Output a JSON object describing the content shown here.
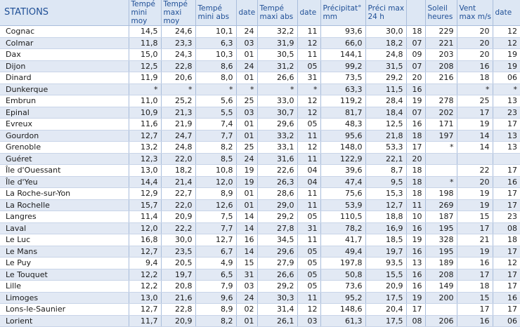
{
  "table": {
    "headers": [
      "STATIONS",
      "Tempé mini moy",
      "Tempé maxi moy",
      "Tempé mini abs",
      "date",
      "Tempé maxi abs",
      "date",
      "Précipitat° mm",
      "Préci max 24 h",
      "",
      "Soleil heures",
      "Vent max m/s",
      "date"
    ],
    "rows": [
      [
        "Cognac",
        "14,5",
        "24,6",
        "10,1",
        "24",
        "32,2",
        "11",
        "93,6",
        "30,0",
        "18",
        "229",
        "20",
        "12"
      ],
      [
        "Colmar",
        "11,8",
        "23,3",
        "6,3",
        "03",
        "31,9",
        "12",
        "66,0",
        "18,2",
        "07",
        "221",
        "20",
        "12"
      ],
      [
        "Dax",
        "15,0",
        "24,3",
        "10,3",
        "01",
        "30,5",
        "11",
        "144,1",
        "24,8",
        "09",
        "203",
        "20",
        "19"
      ],
      [
        "Dijon",
        "12,5",
        "22,8",
        "8,6",
        "24",
        "31,2",
        "05",
        "99,2",
        "31,5",
        "07",
        "208",
        "16",
        "19"
      ],
      [
        "Dinard",
        "11,9",
        "20,6",
        "8,0",
        "01",
        "26,6",
        "31",
        "73,5",
        "29,2",
        "20",
        "216",
        "18",
        "06"
      ],
      [
        "Dunkerque",
        "*",
        "*",
        "*",
        "*",
        "*",
        "*",
        "63,3",
        "11,5",
        "16",
        "",
        "*",
        "*"
      ],
      [
        "Embrun",
        "11,0",
        "25,2",
        "5,6",
        "25",
        "33,0",
        "12",
        "119,2",
        "28,4",
        "19",
        "278",
        "25",
        "13"
      ],
      [
        "Epinal",
        "10,9",
        "21,3",
        "5,5",
        "03",
        "30,7",
        "12",
        "81,7",
        "18,4",
        "07",
        "202",
        "17",
        "23"
      ],
      [
        "Evreux",
        "11,6",
        "21,9",
        "7,4",
        "01",
        "29,6",
        "05",
        "48,3",
        "12,5",
        "16",
        "171",
        "19",
        "17"
      ],
      [
        "Gourdon",
        "12,7",
        "24,7",
        "7,7",
        "01",
        "33,2",
        "11",
        "95,6",
        "21,8",
        "18",
        "197",
        "14",
        "13"
      ],
      [
        "Grenoble",
        "13,2",
        "24,8",
        "8,2",
        "25",
        "33,1",
        "12",
        "148,0",
        "53,3",
        "17",
        "*",
        "14",
        "13"
      ],
      [
        "Guéret",
        "12,3",
        "22,0",
        "8,5",
        "24",
        "31,6",
        "11",
        "122,9",
        "22,1",
        "20",
        "",
        "",
        ""
      ],
      [
        "Île d'Ouessant",
        "13,0",
        "18,2",
        "10,8",
        "19",
        "22,6",
        "04",
        "39,6",
        "8,7",
        "18",
        "",
        "22",
        "17"
      ],
      [
        "Île d'Yeu",
        "14,4",
        "21,4",
        "12,0",
        "19",
        "26,3",
        "04",
        "47,4",
        "9,5",
        "18",
        "*",
        "20",
        "16"
      ],
      [
        "La Roche-sur-Yon",
        "12,9",
        "22,7",
        "8,9",
        "01",
        "28,6",
        "11",
        "75,6",
        "15,3",
        "18",
        "198",
        "19",
        "17"
      ],
      [
        "La Rochelle",
        "15,7",
        "22,0",
        "12,6",
        "01",
        "29,0",
        "11",
        "53,9",
        "12,7",
        "11",
        "269",
        "19",
        "17"
      ],
      [
        "Langres",
        "11,4",
        "20,9",
        "7,5",
        "14",
        "29,2",
        "05",
        "110,5",
        "18,8",
        "10",
        "187",
        "15",
        "23"
      ],
      [
        "Laval",
        "12,0",
        "22,2",
        "7,7",
        "14",
        "27,8",
        "31",
        "78,2",
        "16,9",
        "16",
        "195",
        "17",
        "08"
      ],
      [
        "Le Luc",
        "16,8",
        "30,0",
        "12,7",
        "16",
        "34,5",
        "11",
        "41,7",
        "18,5",
        "19",
        "328",
        "21",
        "18"
      ],
      [
        "Le Mans",
        "12,7",
        "23,5",
        "6,7",
        "14",
        "29,6",
        "05",
        "49,4",
        "19,7",
        "16",
        "195",
        "19",
        "17"
      ],
      [
        "Le Puy",
        "9,4",
        "20,5",
        "4,9",
        "15",
        "27,9",
        "05",
        "197,8",
        "93,5",
        "13",
        "189",
        "16",
        "12"
      ],
      [
        "Le Touquet",
        "12,2",
        "19,7",
        "6,5",
        "31",
        "26,6",
        "05",
        "50,8",
        "15,5",
        "16",
        "208",
        "17",
        "17"
      ],
      [
        "Lille",
        "12,2",
        "20,8",
        "7,9",
        "03",
        "29,2",
        "05",
        "73,6",
        "20,9",
        "16",
        "149",
        "18",
        "17"
      ],
      [
        "Limoges",
        "13,0",
        "21,6",
        "9,6",
        "24",
        "30,3",
        "11",
        "95,2",
        "17,5",
        "19",
        "200",
        "15",
        "16"
      ],
      [
        "Lons-le-Saunier",
        "12,7",
        "22,8",
        "8,9",
        "02",
        "31,4",
        "12",
        "148,6",
        "20,4",
        "17",
        "",
        "17",
        "17"
      ],
      [
        "Lorient",
        "11,7",
        "20,9",
        "8,2",
        "01",
        "26,1",
        "03",
        "61,3",
        "17,5",
        "08",
        "206",
        "16",
        "06"
      ]
    ]
  }
}
